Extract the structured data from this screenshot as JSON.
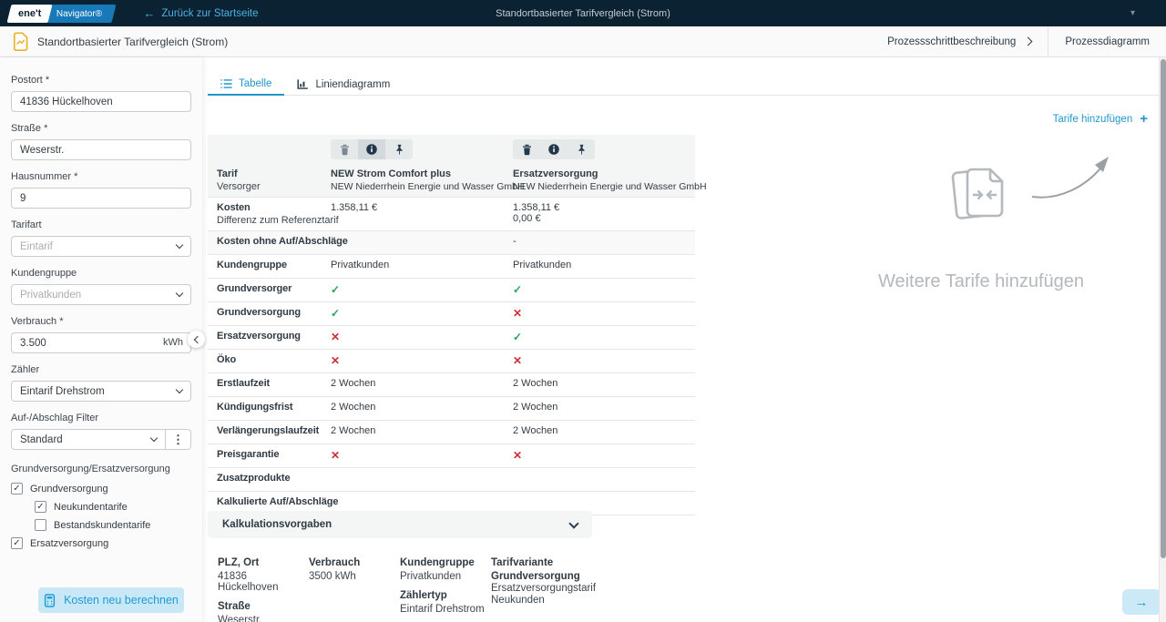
{
  "colors": {
    "topbar_bg": "#0b2233",
    "accent_blue": "#2196c9",
    "link_light_blue": "#4fb0e3",
    "button_bg": "#c9e8f7",
    "button_text": "#1d9cd3",
    "check_green": "#27a356",
    "cross_red": "#cc2f36",
    "doc_icon_yellow": "#e9b32a"
  },
  "topbar": {
    "logo_primary": "ene't",
    "logo_secondary": "Navigator®",
    "back_arrow": "←",
    "back_link": "Zurück zur Startseite",
    "title": "Standortbasierter Tarifvergleich (Strom)",
    "caret": "▾"
  },
  "header": {
    "title": "Standortbasierter Tarifvergleich (Strom)",
    "process_description": "Prozessschrittbeschreibung",
    "process_diagram": "Prozessdiagramm"
  },
  "sidebar": {
    "postort": {
      "label": "Postort *",
      "value": "41836 Hückelhoven"
    },
    "strasse": {
      "label": "Straße *",
      "value": "Weserstr."
    },
    "hausnummer": {
      "label": "Hausnummer *",
      "value": "9"
    },
    "tarifart": {
      "label": "Tarifart",
      "value": "Eintarif"
    },
    "kundengruppe": {
      "label": "Kundengruppe",
      "value": "Privatkunden"
    },
    "verbrauch": {
      "label": "Verbrauch *",
      "value": "3.500",
      "unit": "kWh"
    },
    "zaehler": {
      "label": "Zähler",
      "value": "Eintarif Drehstrom"
    },
    "filter": {
      "label": "Auf-/Abschlag Filter",
      "value": "Standard"
    },
    "group_label": "Grundversorgung/Ersatzversorgung",
    "checkboxes": [
      {
        "label": "Grundversorgung",
        "checked": true,
        "indent": 0
      },
      {
        "label": "Neukundentarife",
        "checked": true,
        "indent": 1
      },
      {
        "label": "Bestandskundentarife",
        "checked": false,
        "indent": 1
      },
      {
        "label": "Ersatzversorgung",
        "checked": true,
        "indent": 0
      }
    ],
    "recalc_button": "Kosten neu berechnen"
  },
  "tabs": [
    {
      "label": "Tabelle"
    },
    {
      "label": "Liniendiagramm"
    }
  ],
  "add_tariffs_link": "Tarife hinzufügen",
  "empty_state_text": "Weitere Tarife hinzufügen",
  "table": {
    "corner": {
      "label": "Tarif",
      "sublabel": "Versorger"
    },
    "columns": [
      {
        "title": "NEW Strom Comfort plus",
        "subtitle": "NEW Niederrhein Energie und Wasser GmbH"
      },
      {
        "title": "Ersatzversorgung",
        "subtitle": "NEW Niederrhein Energie und Wasser GmbH"
      }
    ],
    "rows": [
      {
        "label": "Kosten",
        "sublabel": "Differenz zum Referenztarif",
        "cells": [
          [
            "1.358,11 €"
          ],
          [
            "1.358,11 €",
            "0,00 €"
          ]
        ]
      },
      {
        "label": "Kosten ohne Auf/Abschläge",
        "shaded": true,
        "cells": [
          [
            "-"
          ],
          [
            "-"
          ]
        ]
      },
      {
        "label": "Kundengruppe",
        "cells": [
          [
            "Privatkunden"
          ],
          [
            "Privatkunden"
          ]
        ]
      },
      {
        "label": "Grundversorger",
        "cells": [
          [
            "check"
          ],
          [
            "check"
          ]
        ]
      },
      {
        "label": "Grundversorgung",
        "cells": [
          [
            "check"
          ],
          [
            "cross"
          ]
        ]
      },
      {
        "label": "Ersatzversorgung",
        "cells": [
          [
            "cross"
          ],
          [
            "check"
          ]
        ]
      },
      {
        "label": "Öko",
        "cells": [
          [
            "cross"
          ],
          [
            "cross"
          ]
        ]
      },
      {
        "label": "Erstlaufzeit",
        "cells": [
          [
            "2 Wochen"
          ],
          [
            "2 Wochen"
          ]
        ]
      },
      {
        "label": "Kündigungsfrist",
        "cells": [
          [
            "2 Wochen"
          ],
          [
            "2 Wochen"
          ]
        ]
      },
      {
        "label": "Verlängerungslaufzeit",
        "cells": [
          [
            "2 Wochen"
          ],
          [
            "2 Wochen"
          ]
        ]
      },
      {
        "label": "Preisgarantie",
        "cells": [
          [
            "cross"
          ],
          [
            "cross"
          ]
        ]
      },
      {
        "label": "Zusatzprodukte",
        "cells": [
          [],
          []
        ]
      },
      {
        "label": "Kalkulierte Auf/Abschläge",
        "cells": [
          [],
          []
        ]
      }
    ]
  },
  "accordion_label": "Kalkulationsvorgaben",
  "summary": {
    "columns": [
      [
        {
          "label": "PLZ, Ort",
          "lines": [
            "41836 Hückelhoven"
          ]
        },
        {
          "label": "Straße",
          "lines": [
            "Weserstr."
          ]
        }
      ],
      [
        {
          "label": "Verbrauch",
          "lines": [
            "3500 kWh"
          ]
        }
      ],
      [
        {
          "label": "Kundengruppe",
          "lines": [
            "Privatkunden"
          ]
        },
        {
          "label": "Zählertyp",
          "lines": [
            "Eintarif Drehstrom"
          ]
        }
      ],
      [
        {
          "label": "Tarifvariante",
          "strong_lines": [
            "Grundversorgung"
          ],
          "lines": [
            "Ersatzversorgungstarif",
            "Neukunden"
          ]
        }
      ]
    ]
  },
  "next_button_arrow": "→"
}
